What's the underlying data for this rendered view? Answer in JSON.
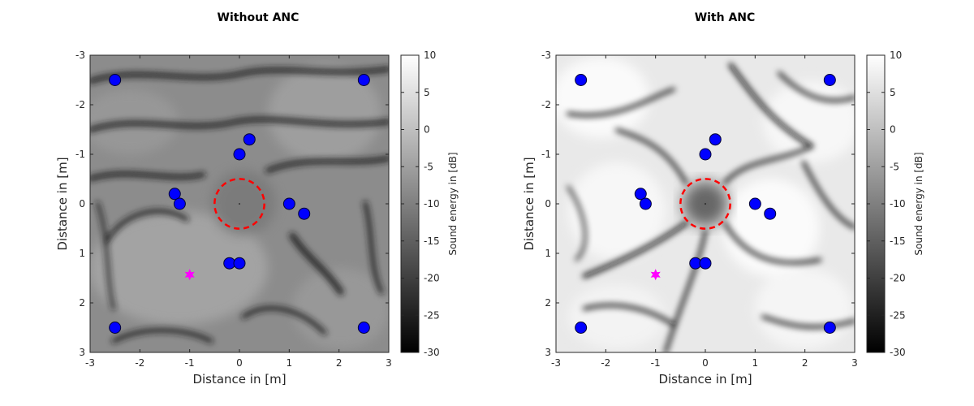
{
  "chart_data": [
    {
      "type": "heatmap",
      "title": "Without ANC",
      "xlabel": "Distance in [m]",
      "ylabel": "Distance in [m]",
      "xlim": [
        -3,
        3
      ],
      "ylim": [
        -3,
        3
      ],
      "y_reversed": true,
      "x_ticks": [
        -3,
        -2,
        -1,
        0,
        1,
        2,
        3
      ],
      "y_ticks": [
        -3,
        -2,
        -1,
        0,
        1,
        2,
        3
      ],
      "colormap": "gray",
      "colorbar": {
        "label": "Sound energy in [dB]",
        "range": [
          -30,
          10
        ],
        "ticks": [
          10,
          5,
          0,
          -5,
          -10,
          -15,
          -20,
          -25,
          -30
        ]
      },
      "speakers": {
        "color": "#0000ff",
        "points": [
          {
            "x": -2.5,
            "y": -2.5
          },
          {
            "x": 2.5,
            "y": -2.5
          },
          {
            "x": 0.2,
            "y": -1.3
          },
          {
            "x": 0.0,
            "y": -1.0
          },
          {
            "x": -1.3,
            "y": -0.2
          },
          {
            "x": -1.2,
            "y": 0.0
          },
          {
            "x": 1.0,
            "y": 0.0
          },
          {
            "x": 1.3,
            "y": 0.2
          },
          {
            "x": -0.2,
            "y": 1.2
          },
          {
            "x": 0.0,
            "y": 1.2
          },
          {
            "x": -2.5,
            "y": 2.5
          },
          {
            "x": 2.5,
            "y": 2.5
          }
        ]
      },
      "source": {
        "x": -1.0,
        "y": 1.43,
        "color": "#ff00ff"
      },
      "quiet_zone": {
        "center_x": 0,
        "center_y": 0,
        "radius": 0.5,
        "color": "#ff0000"
      }
    },
    {
      "type": "heatmap",
      "title": "With ANC",
      "xlabel": "Distance in [m]",
      "ylabel": "Distance in [m]",
      "xlim": [
        -3,
        3
      ],
      "ylim": [
        -3,
        3
      ],
      "y_reversed": true,
      "x_ticks": [
        -3,
        -2,
        -1,
        0,
        1,
        2,
        3
      ],
      "y_ticks": [
        -3,
        -2,
        -1,
        0,
        1,
        2,
        3
      ],
      "colormap": "gray",
      "colorbar": {
        "label": "Sound energy in [dB]",
        "range": [
          -30,
          10
        ],
        "ticks": [
          10,
          5,
          0,
          -5,
          -10,
          -15,
          -20,
          -25,
          -30
        ]
      },
      "speakers": {
        "color": "#0000ff",
        "points": [
          {
            "x": -2.5,
            "y": -2.5
          },
          {
            "x": 2.5,
            "y": -2.5
          },
          {
            "x": 0.2,
            "y": -1.3
          },
          {
            "x": 0.0,
            "y": -1.0
          },
          {
            "x": -1.3,
            "y": -0.2
          },
          {
            "x": -1.2,
            "y": 0.0
          },
          {
            "x": 1.0,
            "y": 0.0
          },
          {
            "x": 1.3,
            "y": 0.2
          },
          {
            "x": -0.2,
            "y": 1.2
          },
          {
            "x": 0.0,
            "y": 1.2
          },
          {
            "x": -2.5,
            "y": 2.5
          },
          {
            "x": 2.5,
            "y": 2.5
          }
        ]
      },
      "source": {
        "x": -1.0,
        "y": 1.43,
        "color": "#ff00ff"
      },
      "quiet_zone": {
        "center_x": 0,
        "center_y": 0,
        "radius": 0.5,
        "color": "#ff0000"
      }
    }
  ]
}
